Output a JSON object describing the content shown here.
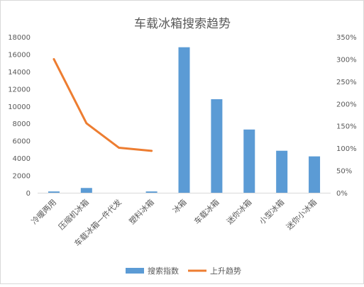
{
  "chart_data": {
    "type": "bar+line",
    "title": "车载冰箱搜索趋势",
    "categories": [
      "冷暖两用",
      "压缩机冰箱",
      "车载冰箱一件代发",
      "塑料冰箱",
      "冰箱",
      "车载冰箱",
      "迷你冰箱",
      "小型冰箱",
      "迷你小冰箱"
    ],
    "series": [
      {
        "name": "搜索指数",
        "kind": "bar",
        "axis": "left",
        "color": "#5b9bd5",
        "values": [
          150,
          550,
          null,
          150,
          16800,
          10800,
          7300,
          4850,
          4200
        ]
      },
      {
        "name": "上升趋势",
        "kind": "line",
        "axis": "right",
        "color": "#ed7d31",
        "values": [
          3.0,
          1.56,
          1.01,
          0.94,
          null,
          null,
          null,
          null,
          null
        ]
      }
    ],
    "y_left": {
      "min": 0,
      "max": 18000,
      "ticks": [
        "0",
        "2000",
        "4000",
        "6000",
        "8000",
        "10000",
        "12000",
        "14000",
        "16000",
        "18000"
      ]
    },
    "y_right": {
      "min": 0,
      "max": 3.5,
      "ticks": [
        "0%",
        "50%",
        "100%",
        "150%",
        "200%",
        "250%",
        "300%",
        "350%"
      ]
    },
    "grid": false,
    "legend_position": "bottom"
  }
}
